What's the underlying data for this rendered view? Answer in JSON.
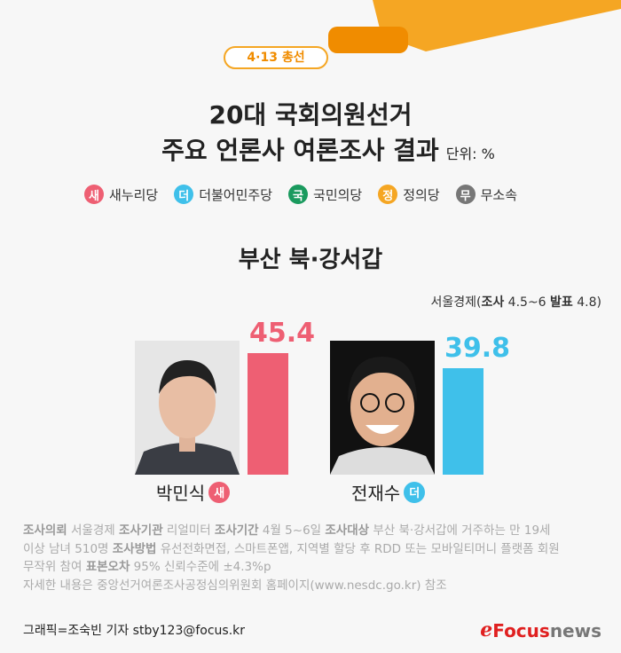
{
  "badge": "4·13 총선",
  "title_line1": "20대 국회의원선거",
  "title_line2": "주요 언론사 여론조사 결과",
  "unit": "단위: %",
  "legend": [
    {
      "mark": "새",
      "label": "새누리당",
      "color": "#ee5f73"
    },
    {
      "mark": "더",
      "label": "더불어민주당",
      "color": "#3fc0ea"
    },
    {
      "mark": "국",
      "label": "국민의당",
      "color": "#1a9a5e"
    },
    {
      "mark": "정",
      "label": "정의당",
      "color": "#f5a623"
    },
    {
      "mark": "무",
      "label": "무소속",
      "color": "#777777"
    }
  ],
  "district": "부산 북·강서갑",
  "source": {
    "outlet": "서울경제(",
    "survey_label": "조사",
    "survey": " 4.5~6 ",
    "release_label": "발표",
    "release": " 4.8)"
  },
  "chart_data": {
    "type": "bar",
    "categories": [
      "박민식",
      "전재수"
    ],
    "parties": [
      "새",
      "더"
    ],
    "values": [
      45.4,
      39.8
    ],
    "colors": [
      "#ee5f73",
      "#3fc0ea"
    ],
    "ylim": [
      0,
      50
    ],
    "labels": [
      "45.4",
      "39.8"
    ]
  },
  "notes": {
    "l1": [
      [
        "조사의뢰",
        true
      ],
      [
        " 서울경제 ",
        false
      ],
      [
        "조사기관",
        true
      ],
      [
        " 리얼미터 ",
        false
      ],
      [
        "조사기간",
        true
      ],
      [
        " 4월 5~6일 ",
        false
      ],
      [
        "조사대상",
        true
      ],
      [
        " 부산 북·강서갑에 거주하는 만 19세",
        false
      ]
    ],
    "l2": [
      [
        "이상 남녀 510명 ",
        false
      ],
      [
        "조사방법",
        true
      ],
      [
        " 유선전화면접, 스마트폰앱, 지역별 할당 후 RDD 또는 모바일티머니 플랫폼 회원",
        false
      ]
    ],
    "l3": [
      [
        "무작위 참여  ",
        false
      ],
      [
        "표본오차",
        true
      ],
      [
        " 95% 신뢰수준에 ±4.3%p",
        false
      ]
    ],
    "l4": [
      [
        "자세한 내용은 중앙선거여론조사공정심의위원회 홈페이지(www.nesdc.go.kr) 참조",
        false
      ]
    ]
  },
  "credit": "그래픽=조숙빈 기자 stby123@focus.kr",
  "logo": {
    "focus": "Focus",
    "news": "news"
  }
}
